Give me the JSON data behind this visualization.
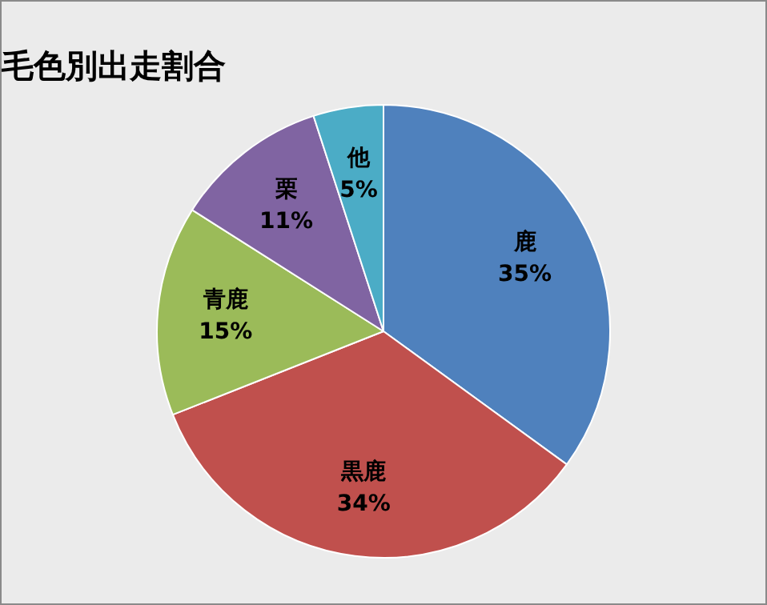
{
  "chart_data": {
    "type": "pie",
    "title": "毛色別出走割合",
    "categories": [
      "鹿",
      "黒鹿",
      "青鹿",
      "栗",
      "他"
    ],
    "values": [
      35,
      34,
      15,
      11,
      5
    ],
    "value_labels": [
      "35%",
      "34%",
      "15%",
      "11%",
      "5%"
    ],
    "colors": [
      "#4f81bd",
      "#c0504d",
      "#9bbb59",
      "#8064a2",
      "#4bacc6"
    ],
    "legend": false
  }
}
